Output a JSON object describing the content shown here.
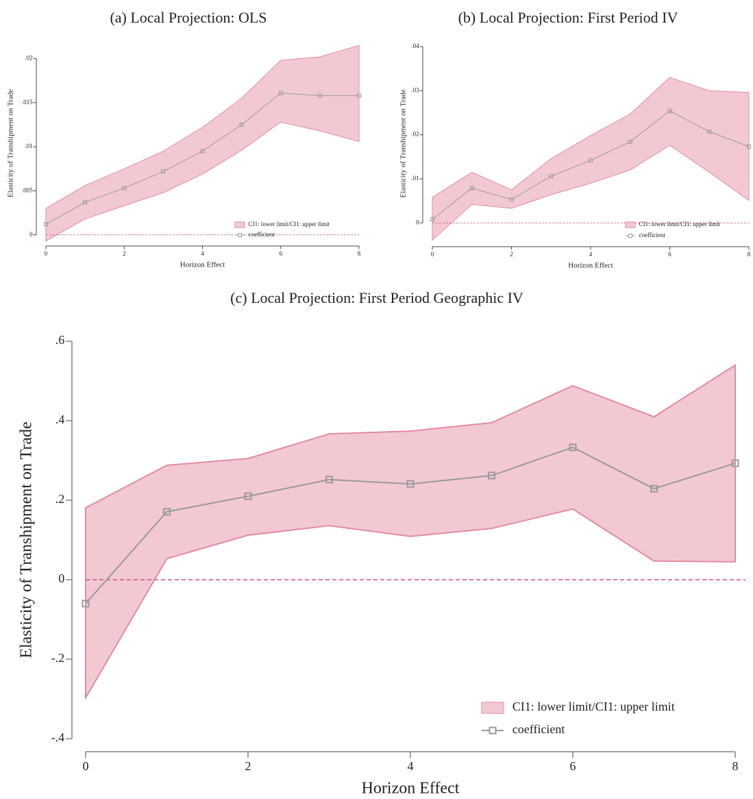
{
  "chart_data": [
    {
      "type": "line",
      "title": "(a) Local Projection: OLS",
      "x_label": "Horizon Effect",
      "y_label": "Elasticity of Transhipment on Trade",
      "x": [
        0,
        1,
        2,
        3,
        4,
        5,
        6,
        7,
        8
      ],
      "xlim": [
        0,
        8
      ],
      "xticks": [
        0,
        2,
        4,
        6,
        8
      ],
      "ylim": [
        -0.0008,
        0.0216
      ],
      "yticks": [
        0,
        {
          "value": 0.005,
          "label": ".005"
        },
        {
          "value": 0.01,
          "label": ".01"
        },
        {
          "value": 0.015,
          "label": ".015"
        },
        {
          "value": 0.02,
          "label": ".02"
        }
      ],
      "hline": 0,
      "hline_color": "#d14d7b",
      "series": [
        {
          "name": "CI1: lower limit/CI1: upper limit",
          "color": "#f2c9d3",
          "edge_color": "#e38aa2",
          "lower": [
            -0.0007,
            0.0018,
            0.0033,
            0.0048,
            0.0069,
            0.0096,
            0.0128,
            0.0118,
            0.0106
          ],
          "upper": [
            0.003,
            0.0056,
            0.0075,
            0.0095,
            0.0122,
            0.0155,
            0.0198,
            0.0202,
            0.0215
          ]
        },
        {
          "name": "coefficient",
          "color": "#999999",
          "values": [
            0.0012,
            0.0037,
            0.0053,
            0.0072,
            0.0095,
            0.0125,
            0.0161,
            0.0158,
            0.0158
          ]
        }
      ]
    },
    {
      "type": "line",
      "title": "(b) Local Projection: First Period IV",
      "x_label": "Horizon Effect",
      "y_label": "Elasticity of Transhipment on Trade",
      "x": [
        0,
        1,
        2,
        3,
        4,
        5,
        6,
        7,
        8
      ],
      "xlim": [
        0,
        8
      ],
      "xticks": [
        0,
        2,
        4,
        6,
        8
      ],
      "ylim": [
        -0.004,
        0.04
      ],
      "yticks": [
        0,
        {
          "value": 0.01,
          "label": ".01"
        },
        {
          "value": 0.02,
          "label": ".02"
        },
        {
          "value": 0.03,
          "label": ".03"
        },
        {
          "value": 0.04,
          "label": ".04"
        }
      ],
      "hline": 0,
      "hline_color": "#d14d7b",
      "series": [
        {
          "name": "CI1: lower limit/CI1: upper limit",
          "color": "#f2c9d3",
          "edge_color": "#e38aa2",
          "lower": [
            -0.0039,
            0.0042,
            0.0033,
            0.0064,
            0.009,
            0.012,
            0.0176,
            0.0115,
            0.0051
          ],
          "upper": [
            0.0058,
            0.0115,
            0.0075,
            0.0146,
            0.0198,
            0.0247,
            0.033,
            0.03,
            0.0296
          ]
        },
        {
          "name": "coefficient",
          "color": "#999999",
          "values": [
            0.0008,
            0.0079,
            0.0053,
            0.0106,
            0.0142,
            0.0184,
            0.0254,
            0.0207,
            0.0173
          ]
        }
      ]
    },
    {
      "type": "line",
      "title": "(c) Local Projection: First Period Geographic IV",
      "x_label": "Horizon Effect",
      "y_label": "Elasticity of Transhipment on Trade",
      "x": [
        0,
        1,
        2,
        3,
        4,
        5,
        6,
        7,
        8
      ],
      "xlim": [
        0,
        8
      ],
      "xticks": [
        0,
        2,
        4,
        6,
        8
      ],
      "ylim": [
        -0.4,
        0.6
      ],
      "yticks": [
        {
          "value": -0.4,
          "label": "-.4"
        },
        {
          "value": -0.2,
          "label": "-.2"
        },
        0,
        {
          "value": 0.2,
          "label": ".2"
        },
        {
          "value": 0.4,
          "label": ".4"
        },
        {
          "value": 0.6,
          "label": ".6"
        }
      ],
      "hline": 0,
      "hline_color": "#d14d7b",
      "series": [
        {
          "name": "CI1: lower limit/CI1: upper limit",
          "color": "#f2c9d3",
          "edge_color": "#e38aa2",
          "lower": [
            -0.297,
            0.053,
            0.112,
            0.136,
            0.109,
            0.129,
            0.178,
            0.047,
            0.045
          ],
          "upper": [
            0.181,
            0.288,
            0.305,
            0.367,
            0.374,
            0.395,
            0.488,
            0.41,
            0.54
          ]
        },
        {
          "name": "coefficient",
          "color": "#999999",
          "values": [
            -0.06,
            0.171,
            0.21,
            0.252,
            0.241,
            0.262,
            0.333,
            0.229,
            0.293
          ]
        }
      ]
    }
  ]
}
